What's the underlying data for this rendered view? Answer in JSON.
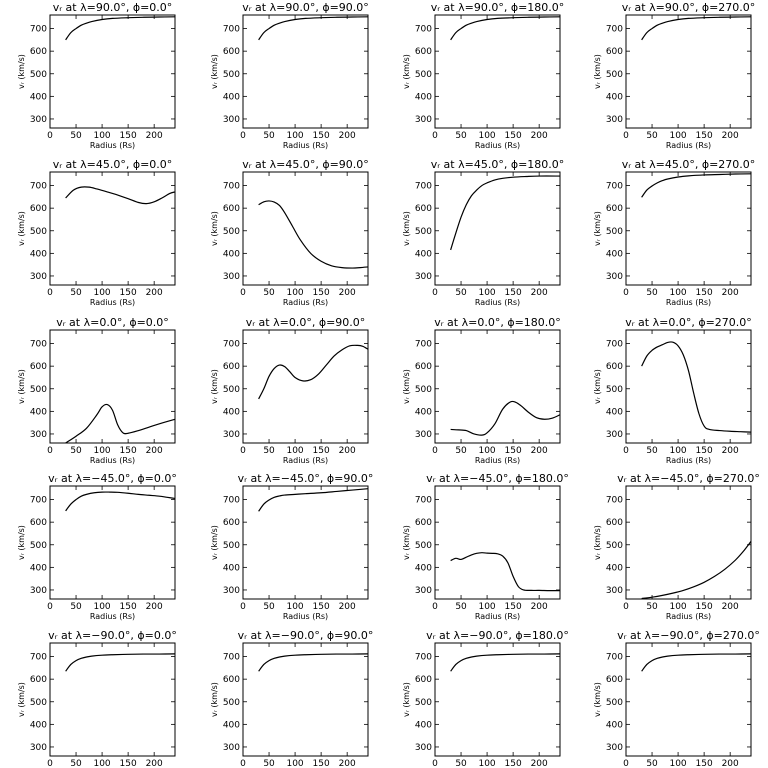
{
  "figure": {
    "background": "#ffffff",
    "line_color": "#000000"
  },
  "chart_data": [
    {
      "type": "line",
      "title": "vᵣ at λ=90.0°, ϕ=0.0°",
      "xlabel": "Radius (Rs)",
      "ylabel": "vᵣ (km/s)",
      "xlim": [
        0,
        240
      ],
      "ylim": [
        260,
        760
      ],
      "xticks": [
        0,
        50,
        100,
        150,
        200
      ],
      "yticks": [
        300,
        400,
        500,
        600,
        700
      ],
      "grid": false,
      "x": [
        30,
        40,
        50,
        60,
        70,
        80,
        100,
        120,
        150,
        180,
        210,
        240
      ],
      "y": [
        650,
        682,
        700,
        715,
        724,
        731,
        740,
        745,
        748,
        750,
        751,
        752
      ]
    },
    {
      "type": "line",
      "title": "vᵣ at λ=90.0°, ϕ=90.0°",
      "xlabel": "Radius (Rs)",
      "ylabel": "vᵣ (km/s)",
      "xlim": [
        0,
        240
      ],
      "ylim": [
        260,
        760
      ],
      "xticks": [
        0,
        50,
        100,
        150,
        200
      ],
      "yticks": [
        300,
        400,
        500,
        600,
        700
      ],
      "grid": false,
      "x": [
        30,
        40,
        50,
        60,
        70,
        80,
        100,
        120,
        150,
        180,
        210,
        240
      ],
      "y": [
        650,
        682,
        700,
        715,
        724,
        731,
        740,
        745,
        748,
        750,
        751,
        752
      ]
    },
    {
      "type": "line",
      "title": "vᵣ at λ=90.0°, ϕ=180.0°",
      "xlabel": "Radius (Rs)",
      "ylabel": "vᵣ (km/s)",
      "xlim": [
        0,
        240
      ],
      "ylim": [
        260,
        760
      ],
      "xticks": [
        0,
        50,
        100,
        150,
        200
      ],
      "yticks": [
        300,
        400,
        500,
        600,
        700
      ],
      "grid": false,
      "x": [
        30,
        40,
        50,
        60,
        70,
        80,
        100,
        120,
        150,
        180,
        210,
        240
      ],
      "y": [
        650,
        682,
        700,
        715,
        724,
        731,
        740,
        745,
        748,
        750,
        751,
        752
      ]
    },
    {
      "type": "line",
      "title": "vᵣ at λ=90.0°, ϕ=270.0°",
      "xlabel": "Radius (Rs)",
      "ylabel": "vᵣ (km/s)",
      "xlim": [
        0,
        240
      ],
      "ylim": [
        260,
        760
      ],
      "xticks": [
        0,
        50,
        100,
        150,
        200
      ],
      "yticks": [
        300,
        400,
        500,
        600,
        700
      ],
      "grid": false,
      "x": [
        30,
        40,
        50,
        60,
        70,
        80,
        100,
        120,
        150,
        180,
        210,
        240
      ],
      "y": [
        650,
        682,
        700,
        715,
        724,
        731,
        740,
        745,
        748,
        750,
        751,
        752
      ]
    },
    {
      "type": "line",
      "title": "vᵣ at λ=45.0°, ϕ=0.0°",
      "xlabel": "Radius (Rs)",
      "ylabel": "vᵣ (km/s)",
      "xlim": [
        0,
        240
      ],
      "ylim": [
        260,
        760
      ],
      "xticks": [
        0,
        50,
        100,
        150,
        200
      ],
      "yticks": [
        300,
        400,
        500,
        600,
        700
      ],
      "grid": false,
      "x": [
        30,
        45,
        60,
        75,
        90,
        110,
        130,
        150,
        170,
        185,
        200,
        215,
        230,
        240
      ],
      "y": [
        645,
        680,
        693,
        693,
        685,
        672,
        658,
        642,
        625,
        620,
        628,
        645,
        665,
        672
      ]
    },
    {
      "type": "line",
      "title": "vᵣ at λ=45.0°, ϕ=90.0°",
      "xlabel": "Radius (Rs)",
      "ylabel": "vᵣ (km/s)",
      "xlim": [
        0,
        240
      ],
      "ylim": [
        260,
        760
      ],
      "xticks": [
        0,
        50,
        100,
        150,
        200
      ],
      "yticks": [
        300,
        400,
        500,
        600,
        700
      ],
      "grid": false,
      "x": [
        30,
        40,
        50,
        60,
        70,
        80,
        95,
        110,
        130,
        150,
        170,
        190,
        210,
        225,
        240
      ],
      "y": [
        615,
        628,
        632,
        627,
        612,
        580,
        520,
        460,
        400,
        365,
        345,
        337,
        335,
        337,
        340
      ]
    },
    {
      "type": "line",
      "title": "vᵣ at λ=45.0°, ϕ=180.0°",
      "xlabel": "Radius (Rs)",
      "ylabel": "vᵣ (km/s)",
      "xlim": [
        0,
        240
      ],
      "ylim": [
        260,
        760
      ],
      "xticks": [
        0,
        50,
        100,
        150,
        200
      ],
      "yticks": [
        300,
        400,
        500,
        600,
        700
      ],
      "grid": false,
      "x": [
        30,
        40,
        50,
        60,
        70,
        80,
        90,
        100,
        115,
        130,
        150,
        175,
        200,
        240
      ],
      "y": [
        415,
        490,
        560,
        615,
        655,
        680,
        700,
        712,
        725,
        732,
        737,
        740,
        742,
        742
      ]
    },
    {
      "type": "line",
      "title": "vᵣ at λ=45.0°, ϕ=270.0°",
      "xlabel": "Radius (Rs)",
      "ylabel": "vᵣ (km/s)",
      "xlim": [
        0,
        240
      ],
      "ylim": [
        260,
        760
      ],
      "xticks": [
        0,
        50,
        100,
        150,
        200
      ],
      "yticks": [
        300,
        400,
        500,
        600,
        700
      ],
      "grid": false,
      "x": [
        30,
        40,
        50,
        60,
        70,
        80,
        100,
        120,
        150,
        180,
        210,
        240
      ],
      "y": [
        648,
        680,
        698,
        712,
        722,
        729,
        738,
        743,
        747,
        749,
        751,
        752
      ]
    },
    {
      "type": "line",
      "title": "vᵣ at λ=0.0°, ϕ=0.0°",
      "xlabel": "Radius (Rs)",
      "ylabel": "vᵣ (km/s)",
      "xlim": [
        0,
        240
      ],
      "ylim": [
        260,
        760
      ],
      "xticks": [
        0,
        50,
        100,
        150,
        200
      ],
      "yticks": [
        300,
        400,
        500,
        600,
        700
      ],
      "grid": false,
      "x": [
        30,
        50,
        70,
        90,
        100,
        110,
        120,
        130,
        140,
        150,
        170,
        190,
        210,
        240
      ],
      "y": [
        260,
        290,
        325,
        385,
        420,
        430,
        405,
        340,
        305,
        303,
        315,
        330,
        345,
        365
      ]
    },
    {
      "type": "line",
      "title": "vᵣ at λ=0.0°, ϕ=90.0°",
      "xlabel": "Radius (Rs)",
      "ylabel": "vᵣ (km/s)",
      "xlim": [
        0,
        240
      ],
      "ylim": [
        260,
        760
      ],
      "xticks": [
        0,
        50,
        100,
        150,
        200
      ],
      "yticks": [
        300,
        400,
        500,
        600,
        700
      ],
      "grid": false,
      "x": [
        30,
        40,
        50,
        60,
        70,
        80,
        90,
        100,
        115,
        130,
        145,
        160,
        175,
        190,
        205,
        220,
        230,
        240
      ],
      "y": [
        455,
        500,
        555,
        590,
        605,
        598,
        575,
        550,
        535,
        540,
        565,
        605,
        645,
        672,
        690,
        692,
        688,
        675
      ]
    },
    {
      "type": "line",
      "title": "vᵣ at λ=0.0°, ϕ=180.0°",
      "xlabel": "Radius (Rs)",
      "ylabel": "vᵣ (km/s)",
      "xlim": [
        0,
        240
      ],
      "ylim": [
        260,
        760
      ],
      "xticks": [
        0,
        50,
        100,
        150,
        200
      ],
      "yticks": [
        300,
        400,
        500,
        600,
        700
      ],
      "grid": false,
      "x": [
        30,
        45,
        60,
        75,
        90,
        100,
        115,
        130,
        145,
        155,
        165,
        180,
        195,
        210,
        225,
        240
      ],
      "y": [
        320,
        318,
        315,
        300,
        295,
        305,
        345,
        410,
        442,
        440,
        425,
        395,
        372,
        365,
        370,
        385
      ]
    },
    {
      "type": "line",
      "title": "vᵣ at λ=0.0°, ϕ=270.0°",
      "xlabel": "Radius (Rs)",
      "ylabel": "vᵣ (km/s)",
      "xlim": [
        0,
        240
      ],
      "ylim": [
        260,
        760
      ],
      "xticks": [
        0,
        50,
        100,
        150,
        200
      ],
      "yticks": [
        300,
        400,
        500,
        600,
        700
      ],
      "grid": false,
      "x": [
        30,
        40,
        50,
        60,
        70,
        80,
        90,
        100,
        110,
        120,
        130,
        140,
        150,
        160,
        180,
        200,
        220,
        240
      ],
      "y": [
        600,
        645,
        670,
        685,
        695,
        705,
        706,
        690,
        650,
        580,
        480,
        390,
        335,
        320,
        315,
        312,
        310,
        308
      ]
    },
    {
      "type": "line",
      "title": "vᵣ at λ=−45.0°, ϕ=0.0°",
      "xlabel": "Radius (Rs)",
      "ylabel": "vᵣ (km/s)",
      "xlim": [
        0,
        240
      ],
      "ylim": [
        260,
        760
      ],
      "xticks": [
        0,
        50,
        100,
        150,
        200
      ],
      "yticks": [
        300,
        400,
        500,
        600,
        700
      ],
      "grid": false,
      "x": [
        30,
        40,
        50,
        60,
        70,
        85,
        100,
        115,
        130,
        150,
        170,
        190,
        210,
        225,
        240
      ],
      "y": [
        650,
        680,
        700,
        715,
        723,
        730,
        733,
        733,
        732,
        728,
        723,
        719,
        715,
        710,
        705
      ]
    },
    {
      "type": "line",
      "title": "vᵣ at λ=−45.0°, ϕ=90.0°",
      "xlabel": "Radius (Rs)",
      "ylabel": "vᵣ (km/s)",
      "xlim": [
        0,
        240
      ],
      "ylim": [
        260,
        760
      ],
      "xticks": [
        0,
        50,
        100,
        150,
        200
      ],
      "yticks": [
        300,
        400,
        500,
        600,
        700
      ],
      "grid": false,
      "x": [
        30,
        40,
        50,
        60,
        70,
        80,
        100,
        120,
        150,
        180,
        210,
        240
      ],
      "y": [
        648,
        680,
        698,
        710,
        716,
        720,
        723,
        726,
        730,
        736,
        742,
        748
      ]
    },
    {
      "type": "line",
      "title": "vᵣ at λ=−45.0°, ϕ=180.0°",
      "xlabel": "Radius (Rs)",
      "ylabel": "vᵣ (km/s)",
      "xlim": [
        0,
        240
      ],
      "ylim": [
        260,
        760
      ],
      "xticks": [
        0,
        50,
        100,
        150,
        200
      ],
      "yticks": [
        300,
        400,
        500,
        600,
        700
      ],
      "grid": false,
      "x": [
        30,
        40,
        50,
        60,
        70,
        80,
        90,
        100,
        110,
        120,
        130,
        140,
        150,
        160,
        170,
        185,
        200,
        220,
        240
      ],
      "y": [
        430,
        440,
        435,
        445,
        455,
        462,
        465,
        463,
        462,
        460,
        450,
        420,
        360,
        315,
        300,
        298,
        298,
        297,
        297
      ]
    },
    {
      "type": "line",
      "title": "vᵣ at λ=−45.0°, ϕ=270.0°",
      "xlabel": "Radius (Rs)",
      "ylabel": "vᵣ (km/s)",
      "xlim": [
        0,
        240
      ],
      "ylim": [
        260,
        760
      ],
      "xticks": [
        0,
        50,
        100,
        150,
        200
      ],
      "yticks": [
        300,
        400,
        500,
        600,
        700
      ],
      "grid": false,
      "x": [
        30,
        50,
        70,
        90,
        110,
        130,
        150,
        170,
        190,
        210,
        225,
        240
      ],
      "y": [
        262,
        268,
        276,
        286,
        298,
        314,
        334,
        360,
        392,
        432,
        470,
        515
      ]
    },
    {
      "type": "line",
      "title": "vᵣ at λ=−90.0°, ϕ=0.0°",
      "xlabel": "Radius (Rs)",
      "ylabel": "vᵣ (km/s)",
      "xlim": [
        0,
        240
      ],
      "ylim": [
        260,
        760
      ],
      "xticks": [
        0,
        50,
        100,
        150,
        200
      ],
      "yticks": [
        300,
        400,
        500,
        600,
        700
      ],
      "grid": false,
      "x": [
        30,
        40,
        50,
        60,
        70,
        80,
        100,
        120,
        150,
        180,
        210,
        240
      ],
      "y": [
        635,
        665,
        682,
        692,
        698,
        702,
        706,
        708,
        710,
        711,
        711,
        712
      ]
    },
    {
      "type": "line",
      "title": "vᵣ at λ=−90.0°, ϕ=90.0°",
      "xlabel": "Radius (Rs)",
      "ylabel": "vᵣ (km/s)",
      "xlim": [
        0,
        240
      ],
      "ylim": [
        260,
        760
      ],
      "xticks": [
        0,
        50,
        100,
        150,
        200
      ],
      "yticks": [
        300,
        400,
        500,
        600,
        700
      ],
      "grid": false,
      "x": [
        30,
        40,
        50,
        60,
        70,
        80,
        100,
        120,
        150,
        180,
        210,
        240
      ],
      "y": [
        635,
        665,
        682,
        692,
        698,
        702,
        706,
        708,
        710,
        711,
        711,
        712
      ]
    },
    {
      "type": "line",
      "title": "vᵣ at λ=−90.0°, ϕ=180.0°",
      "xlabel": "Radius (Rs)",
      "ylabel": "vᵣ (km/s)",
      "xlim": [
        0,
        240
      ],
      "ylim": [
        260,
        760
      ],
      "xticks": [
        0,
        50,
        100,
        150,
        200
      ],
      "yticks": [
        300,
        400,
        500,
        600,
        700
      ],
      "grid": false,
      "x": [
        30,
        40,
        50,
        60,
        70,
        80,
        100,
        120,
        150,
        180,
        210,
        240
      ],
      "y": [
        635,
        665,
        682,
        692,
        698,
        702,
        706,
        708,
        710,
        711,
        711,
        712
      ]
    },
    {
      "type": "line",
      "title": "vᵣ at λ=−90.0°, ϕ=270.0°",
      "xlabel": "Radius (Rs)",
      "ylabel": "vᵣ (km/s)",
      "xlim": [
        0,
        240
      ],
      "ylim": [
        260,
        760
      ],
      "xticks": [
        0,
        50,
        100,
        150,
        200
      ],
      "yticks": [
        300,
        400,
        500,
        600,
        700
      ],
      "grid": false,
      "x": [
        30,
        40,
        50,
        60,
        70,
        80,
        100,
        120,
        150,
        180,
        210,
        240
      ],
      "y": [
        635,
        665,
        682,
        692,
        698,
        702,
        706,
        708,
        710,
        711,
        711,
        712
      ]
    }
  ]
}
